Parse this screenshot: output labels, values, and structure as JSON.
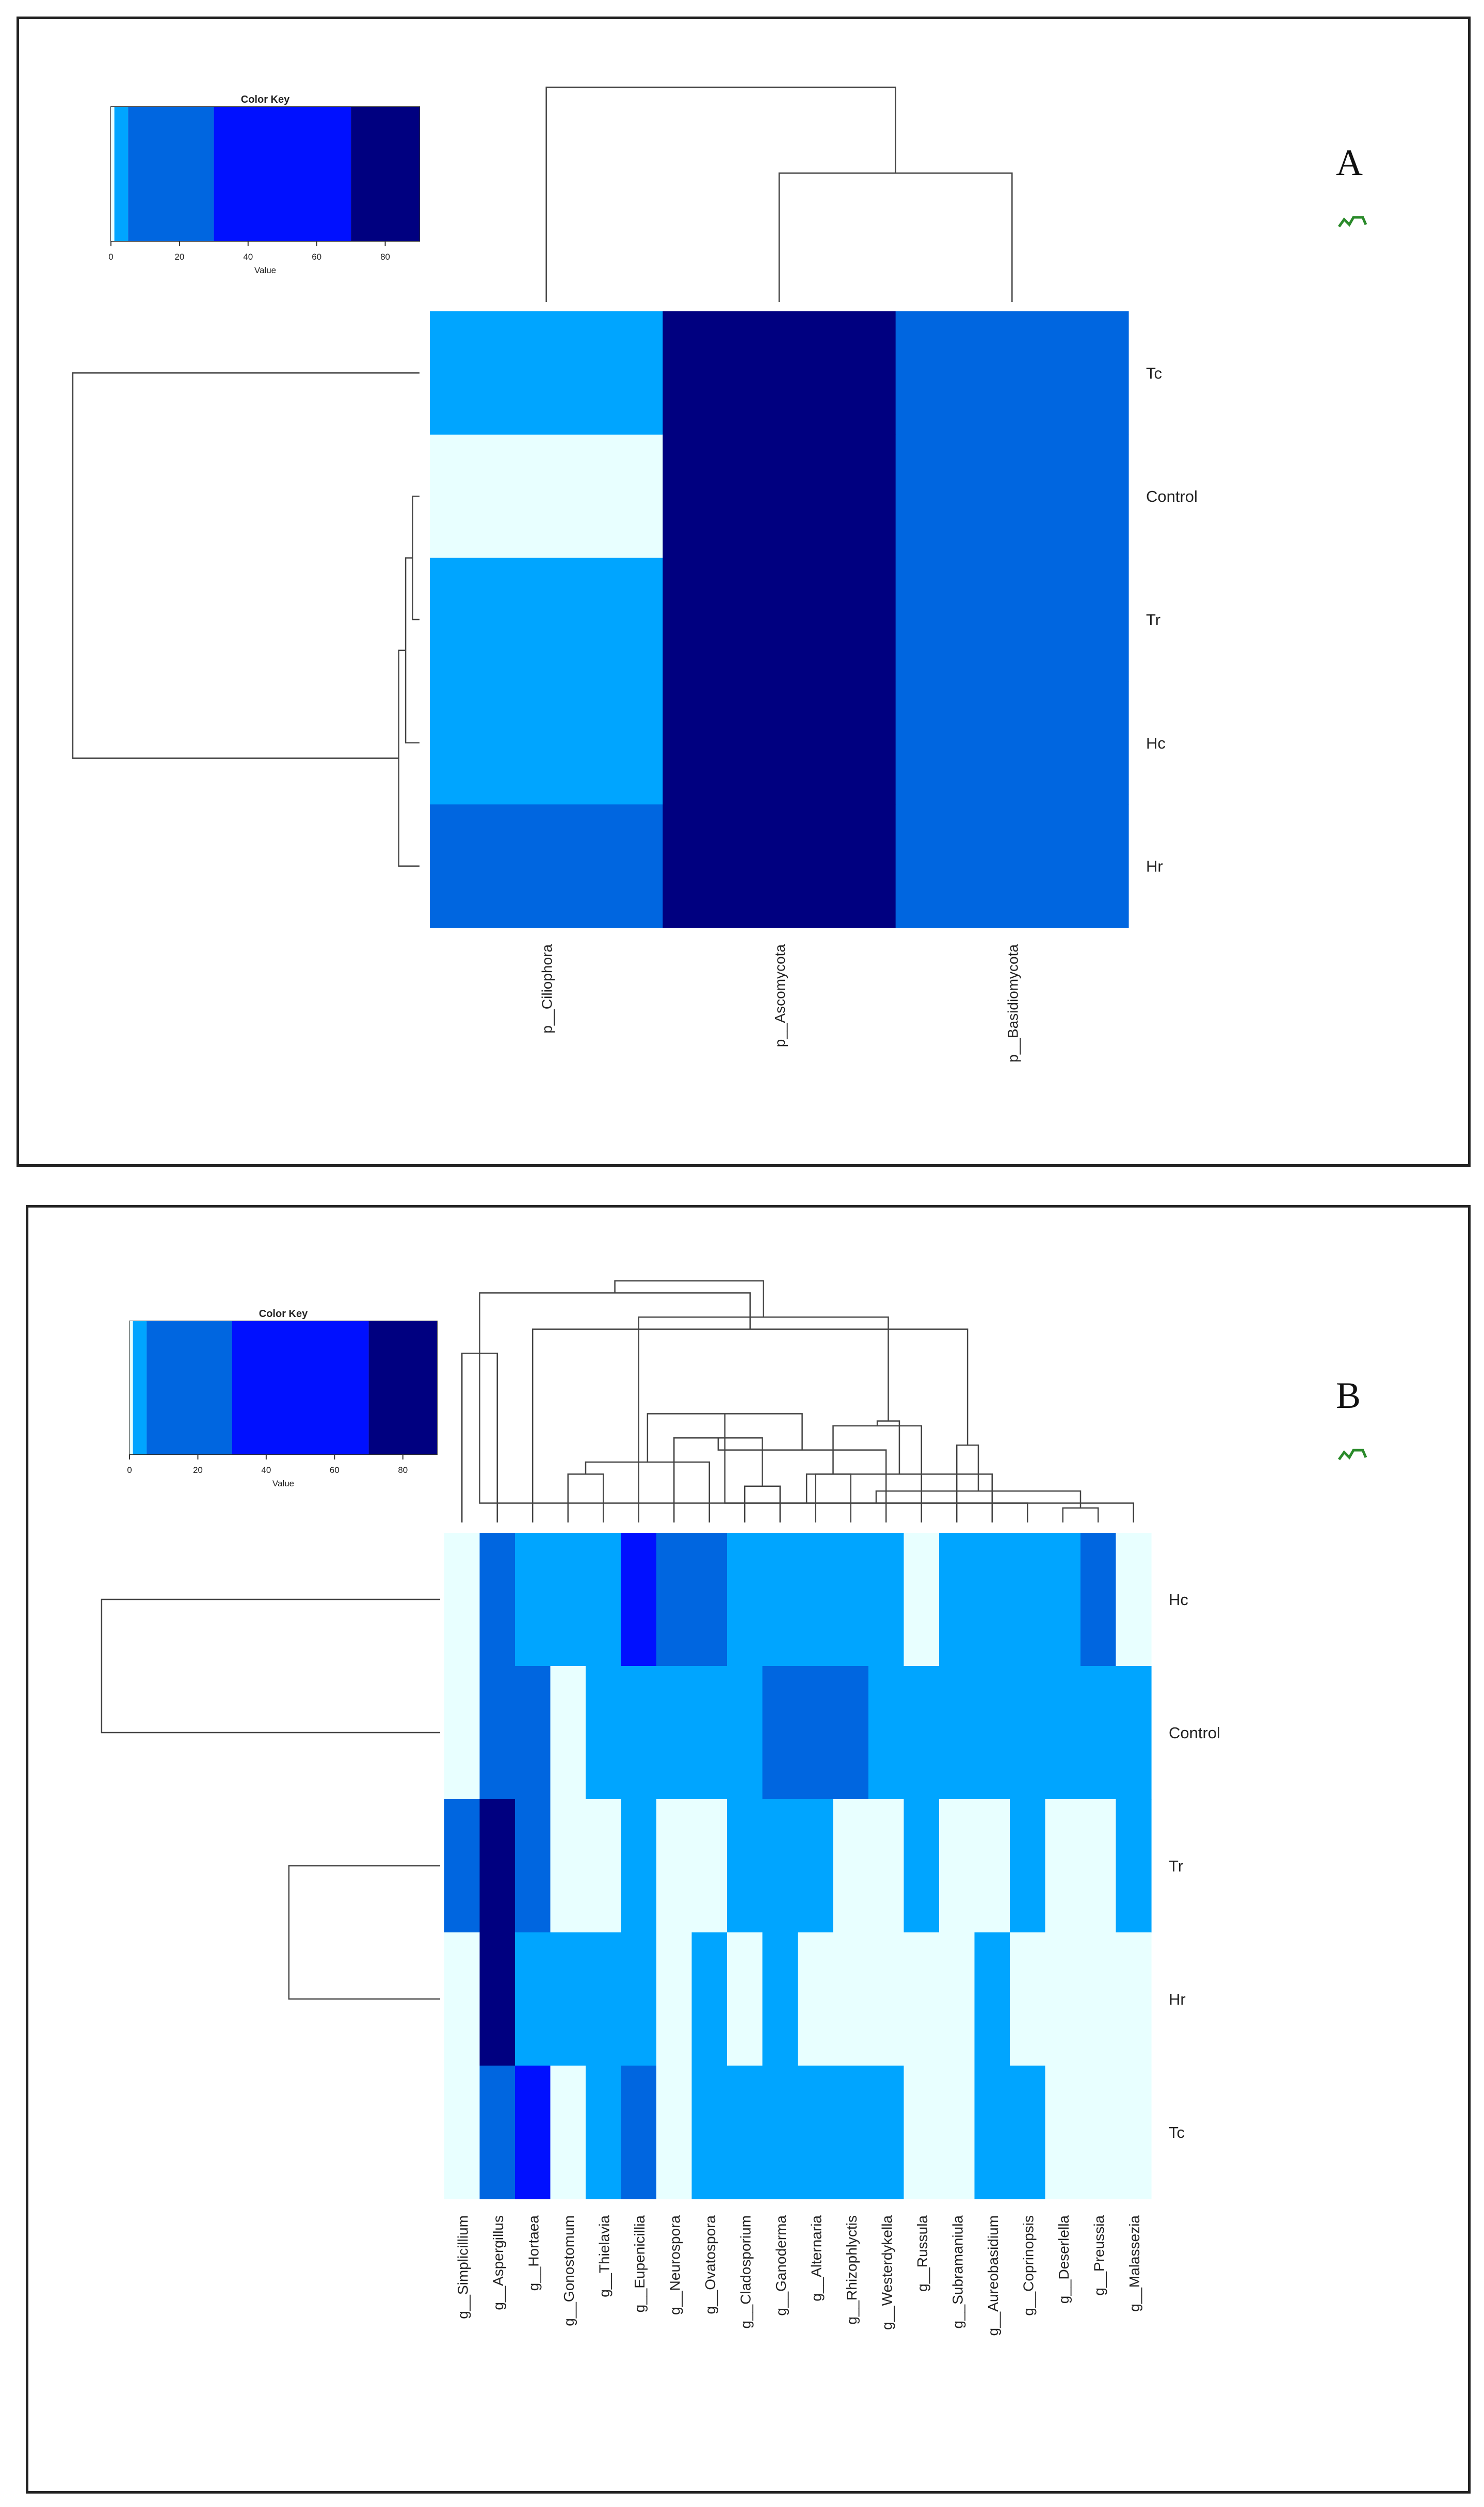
{
  "chart_data": [
    {
      "type": "heatmap",
      "panel_label": "A",
      "color_key": {
        "title": "Color Key",
        "xlabel": "Value",
        "ticks": [
          0,
          20,
          40,
          60,
          80
        ],
        "range": [
          0,
          90
        ],
        "breaks": [
          0,
          1,
          5,
          30,
          70,
          90
        ],
        "colors": [
          "#E8FFFF",
          "#00A5FF",
          "#0066E0",
          "#0010FF",
          "#000080"
        ]
      },
      "columns": [
        "p__Ciliophora",
        "p__Ascomycota",
        "p__Basidiomycota"
      ],
      "rows": [
        "Tc",
        "Control",
        "Tr",
        "Hc",
        "Hr"
      ],
      "legend_values": [
        [
          3,
          85,
          10
        ],
        [
          0.5,
          88,
          9
        ],
        [
          3,
          82,
          12
        ],
        [
          3,
          84,
          11
        ],
        [
          5,
          78,
          20
        ]
      ],
      "row_dendrogram": [
        [
          1,
          2,
          0.02
        ],
        [
          5,
          3,
          0.04
        ],
        [
          6,
          4,
          0.06
        ],
        [
          7,
          0,
          1.0
        ]
      ],
      "col_dendrogram": [
        [
          1,
          2,
          0.6
        ],
        [
          0,
          3,
          1.0
        ]
      ]
    },
    {
      "type": "heatmap",
      "panel_label": "B",
      "color_key": {
        "title": "Color Key",
        "xlabel": "Value",
        "ticks": [
          0,
          20,
          40,
          60,
          80
        ],
        "range": [
          0,
          90
        ],
        "breaks": [
          0,
          1,
          5,
          30,
          70,
          90
        ],
        "colors": [
          "#E8FFFF",
          "#00A5FF",
          "#0066E0",
          "#0010FF",
          "#000080"
        ]
      },
      "columns": [
        "g__Simplicillium",
        "g__Aspergillus",
        "g__Hortaea",
        "g__Gonostomum",
        "g__Thielavia",
        "g__Eupenicillia",
        "g__Neurospora",
        "g__Ovatospora",
        "g__Cladosporium",
        "g__Ganoderma",
        "g__Alternaria",
        "g__Rhizophlyctis",
        "g__Westerdykella",
        "g__Russula",
        "g__Subramaniula",
        "g__Aureobasidium",
        "g__Coprinopsis",
        "g__Deserlella",
        "g__Preussia",
        "g__Malassezia"
      ],
      "rows": [
        "Hc",
        "Control",
        "Tr",
        "Hr",
        "Tc"
      ],
      "legend_values": [
        [
          0.5,
          20,
          3,
          2,
          2,
          50,
          20,
          20,
          2,
          3,
          3,
          2,
          3,
          0.5,
          2,
          2,
          2,
          2,
          10,
          0.5
        ],
        [
          0.5,
          20,
          20,
          0.5,
          2,
          3,
          3,
          3,
          2,
          15,
          15,
          15,
          2,
          3,
          3,
          3,
          3,
          3,
          3,
          3
        ],
        [
          15,
          85,
          20,
          0.5,
          0.5,
          2,
          0.5,
          0.5,
          2,
          2,
          2,
          0.5,
          0.5,
          2,
          0.5,
          0.5,
          2,
          0.5,
          0.5,
          2
        ],
        [
          0.5,
          85,
          2,
          3,
          3,
          2,
          0.5,
          3,
          0.5,
          3,
          0.5,
          0.5,
          0.5,
          0.5,
          0.5,
          2,
          0.5,
          0.5,
          0.5,
          0.5
        ],
        [
          0.5,
          15,
          50,
          0.5,
          2,
          15,
          0.5,
          2,
          2,
          2,
          2,
          2,
          2,
          0.5,
          0.5,
          2,
          2,
          0.5,
          0.5,
          0.5
        ]
      ],
      "row_dendrogram": [
        [
          2,
          3,
          0.42
        ],
        [
          20,
          4,
          0.78
        ],
        [
          0,
          1,
          0.94
        ],
        [
          22,
          21,
          1.0
        ]
      ],
      "col_dendrogram": [
        [
          0,
          1,
          0.7
        ],
        [
          3,
          4,
          0.2
        ],
        [
          8,
          9,
          0.15
        ],
        [
          21,
          7,
          0.25
        ],
        [
          22,
          6,
          0.35
        ],
        [
          10,
          11,
          0.2
        ],
        [
          12,
          24,
          0.3
        ],
        [
          25,
          13,
          0.4
        ],
        [
          26,
          23,
          0.45
        ],
        [
          17,
          18,
          0.06
        ],
        [
          16,
          28,
          0.08
        ],
        [
          19,
          20,
          0.08
        ],
        [
          29,
          30,
          0.13
        ],
        [
          15,
          31,
          0.2
        ],
        [
          32,
          14,
          0.32
        ],
        [
          27,
          33,
          0.42
        ],
        [
          34,
          2,
          0.8
        ],
        [
          35,
          5,
          0.85
        ],
        [
          20,
          36,
          0.95
        ],
        [
          37,
          38,
          1.0
        ]
      ]
    }
  ]
}
